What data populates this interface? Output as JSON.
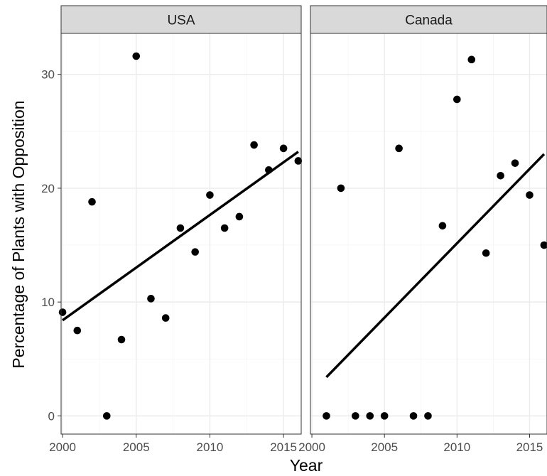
{
  "chart_data": {
    "type": "scatter",
    "xlabel": "Year",
    "ylabel": "Percentage of Plants with Opposition",
    "xlim": [
      1999.9,
      2016.2
    ],
    "ylim": [
      -1.6,
      33.6
    ],
    "x_ticks": [
      2000,
      2005,
      2010,
      2015
    ],
    "y_ticks": [
      0,
      10,
      20,
      30
    ],
    "grid": true,
    "legend": "none",
    "colors": {
      "points": "#000000",
      "strip": "#d9d9d9",
      "grid": "#ebebeb",
      "fit": "#000000"
    },
    "panels": [
      {
        "title": "USA",
        "points": [
          {
            "x": 2000,
            "y": 9.1
          },
          {
            "x": 2001,
            "y": 7.5
          },
          {
            "x": 2002,
            "y": 18.8
          },
          {
            "x": 2003,
            "y": 0.0
          },
          {
            "x": 2004,
            "y": 6.7
          },
          {
            "x": 2005,
            "y": 31.6
          },
          {
            "x": 2006,
            "y": 10.3
          },
          {
            "x": 2007,
            "y": 8.6
          },
          {
            "x": 2008,
            "y": 16.5
          },
          {
            "x": 2009,
            "y": 14.4
          },
          {
            "x": 2010,
            "y": 19.4
          },
          {
            "x": 2011,
            "y": 16.5
          },
          {
            "x": 2012,
            "y": 17.5
          },
          {
            "x": 2013,
            "y": 23.8
          },
          {
            "x": 2014,
            "y": 21.6
          },
          {
            "x": 2015,
            "y": 23.5
          },
          {
            "x": 2016,
            "y": 22.4
          }
        ],
        "fit": {
          "x": [
            2000,
            2016
          ],
          "y": [
            8.4,
            23.2
          ]
        }
      },
      {
        "title": "Canada",
        "points": [
          {
            "x": 2001,
            "y": 0.0
          },
          {
            "x": 2002,
            "y": 20.0
          },
          {
            "x": 2003,
            "y": 0.0
          },
          {
            "x": 2004,
            "y": 0.0
          },
          {
            "x": 2005,
            "y": 0.0
          },
          {
            "x": 2006,
            "y": 23.5
          },
          {
            "x": 2007,
            "y": 0.0
          },
          {
            "x": 2008,
            "y": 0.0
          },
          {
            "x": 2009,
            "y": 16.7
          },
          {
            "x": 2010,
            "y": 27.8
          },
          {
            "x": 2011,
            "y": 31.3
          },
          {
            "x": 2012,
            "y": 14.3
          },
          {
            "x": 2013,
            "y": 21.1
          },
          {
            "x": 2014,
            "y": 22.2
          },
          {
            "x": 2015,
            "y": 19.4
          },
          {
            "x": 2016,
            "y": 15.0
          }
        ],
        "fit": {
          "x": [
            2001,
            2016
          ],
          "y": [
            3.4,
            23.0
          ]
        }
      }
    ]
  }
}
